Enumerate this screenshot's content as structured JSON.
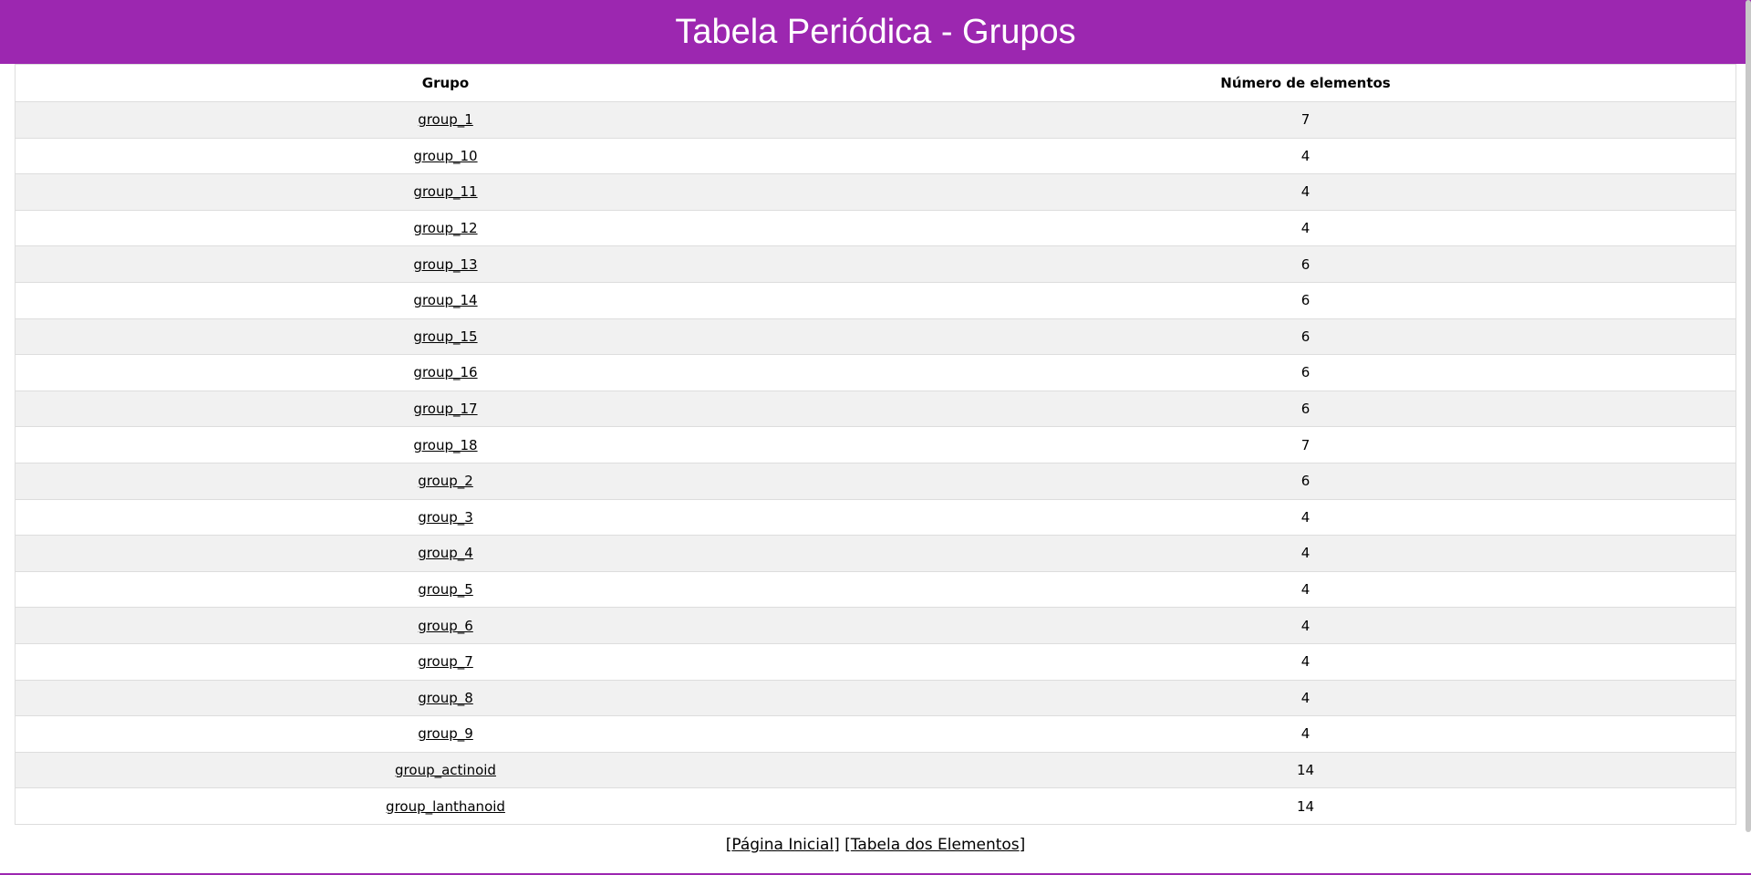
{
  "header": {
    "title": "Tabela Periódica - Grupos"
  },
  "table": {
    "columns": [
      "Grupo",
      "Número de elementos"
    ],
    "rows": [
      {
        "group": "group_1",
        "count": "7"
      },
      {
        "group": "group_10",
        "count": "4"
      },
      {
        "group": "group_11",
        "count": "4"
      },
      {
        "group": "group_12",
        "count": "4"
      },
      {
        "group": "group_13",
        "count": "6"
      },
      {
        "group": "group_14",
        "count": "6"
      },
      {
        "group": "group_15",
        "count": "6"
      },
      {
        "group": "group_16",
        "count": "6"
      },
      {
        "group": "group_17",
        "count": "6"
      },
      {
        "group": "group_18",
        "count": "7"
      },
      {
        "group": "group_2",
        "count": "6"
      },
      {
        "group": "group_3",
        "count": "4"
      },
      {
        "group": "group_4",
        "count": "4"
      },
      {
        "group": "group_5",
        "count": "4"
      },
      {
        "group": "group_6",
        "count": "4"
      },
      {
        "group": "group_7",
        "count": "4"
      },
      {
        "group": "group_8",
        "count": "4"
      },
      {
        "group": "group_9",
        "count": "4"
      },
      {
        "group": "group_actinoid",
        "count": "14"
      },
      {
        "group": "group_lanthanoid",
        "count": "14"
      }
    ]
  },
  "footer": {
    "home_link": "Página Inicial",
    "elements_link": "Tabela dos Elementos"
  },
  "colors": {
    "header_bg": "#9c27b0",
    "row_stripe": "#f1f1f1"
  }
}
